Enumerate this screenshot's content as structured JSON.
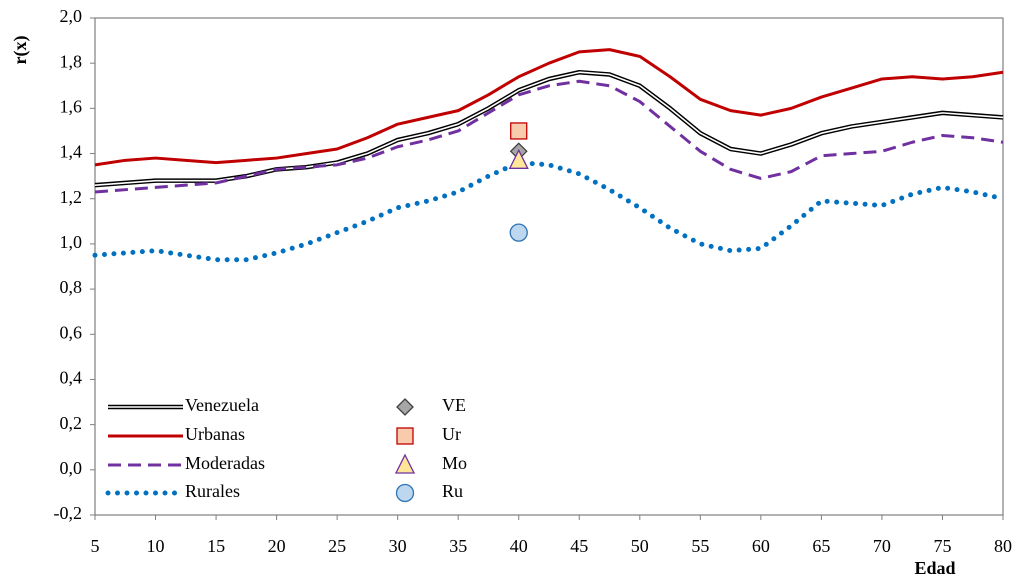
{
  "chart_data": {
    "type": "line",
    "xlabel": "Edad",
    "ylabel": "r(x)",
    "x": [
      5,
      7.5,
      10,
      12.5,
      15,
      17.5,
      20,
      22.5,
      25,
      27.5,
      30,
      32.5,
      35,
      37.5,
      40,
      42.5,
      45,
      47.5,
      50,
      52.5,
      55,
      57.5,
      60,
      62.5,
      65,
      67.5,
      70,
      72.5,
      75,
      77.5,
      80
    ],
    "series": [
      {
        "name": "Venezuela",
        "color": "#000000",
        "style": "double",
        "values": [
          1.26,
          1.27,
          1.28,
          1.28,
          1.28,
          1.3,
          1.33,
          1.34,
          1.36,
          1.4,
          1.46,
          1.49,
          1.53,
          1.6,
          1.68,
          1.73,
          1.76,
          1.75,
          1.7,
          1.6,
          1.49,
          1.42,
          1.4,
          1.44,
          1.49,
          1.52,
          1.54,
          1.56,
          1.58,
          1.57,
          1.56
        ]
      },
      {
        "name": "Urbanas",
        "color": "#c00000",
        "style": "solid",
        "values": [
          1.35,
          1.37,
          1.38,
          1.37,
          1.36,
          1.37,
          1.38,
          1.4,
          1.42,
          1.47,
          1.53,
          1.56,
          1.59,
          1.66,
          1.74,
          1.8,
          1.85,
          1.86,
          1.83,
          1.74,
          1.64,
          1.59,
          1.57,
          1.6,
          1.65,
          1.69,
          1.73,
          1.74,
          1.73,
          1.74,
          1.76
        ]
      },
      {
        "name": "Moderadas",
        "color": "#7030a0",
        "style": "dashed",
        "values": [
          1.23,
          1.24,
          1.25,
          1.26,
          1.27,
          1.3,
          1.33,
          1.34,
          1.35,
          1.38,
          1.43,
          1.46,
          1.5,
          1.58,
          1.66,
          1.7,
          1.72,
          1.7,
          1.63,
          1.52,
          1.41,
          1.33,
          1.29,
          1.32,
          1.39,
          1.4,
          1.41,
          1.45,
          1.48,
          1.47,
          1.45
        ]
      },
      {
        "name": "Rurales",
        "color": "#0070c0",
        "style": "dotted",
        "values": [
          0.95,
          0.96,
          0.97,
          0.95,
          0.93,
          0.93,
          0.96,
          1.0,
          1.05,
          1.1,
          1.16,
          1.19,
          1.23,
          1.3,
          1.36,
          1.35,
          1.31,
          1.24,
          1.16,
          1.07,
          1.0,
          0.97,
          0.98,
          1.08,
          1.19,
          1.18,
          1.17,
          1.22,
          1.25,
          1.23,
          1.2
        ]
      }
    ],
    "points": [
      {
        "name": "VE",
        "x": 40,
        "y": 1.41,
        "marker": "diamond",
        "color": "#a6a6a6",
        "edgecolor": "#404040"
      },
      {
        "name": "Ur",
        "x": 40,
        "y": 1.5,
        "marker": "square",
        "color": "#f8cbad",
        "edgecolor": "#c00000"
      },
      {
        "name": "Mo",
        "x": 40,
        "y": 1.37,
        "marker": "triangle",
        "color": "#ffe699",
        "edgecolor": "#7030a0"
      },
      {
        "name": "Ru",
        "x": 40,
        "y": 1.05,
        "marker": "circle",
        "color": "#bdd7ee",
        "edgecolor": "#2e75b6"
      }
    ],
    "xlim": [
      5,
      80
    ],
    "xticks": [
      5,
      10,
      15,
      20,
      25,
      30,
      35,
      40,
      45,
      50,
      55,
      60,
      65,
      70,
      75,
      80
    ],
    "ylim": [
      -0.2,
      2.0
    ],
    "yticks": [
      {
        "value": -0.2,
        "label": "-0,2"
      },
      {
        "value": 0,
        "label": "0,0"
      },
      {
        "value": 0.2,
        "label": "0,2"
      },
      {
        "value": 0.4,
        "label": "0,4"
      },
      {
        "value": 0.6,
        "label": "0,6"
      },
      {
        "value": 0.8,
        "label": "0,8"
      },
      {
        "value": 1.0,
        "label": "1,0"
      },
      {
        "value": 1.2,
        "label": "1,2"
      },
      {
        "value": 1.4,
        "label": "1,4"
      },
      {
        "value": 1.6,
        "label": "1,6"
      },
      {
        "value": 1.8,
        "label": "1,8"
      },
      {
        "value": 2.0,
        "label": "2,0"
      }
    ],
    "grid": false,
    "legend": "lower left"
  }
}
